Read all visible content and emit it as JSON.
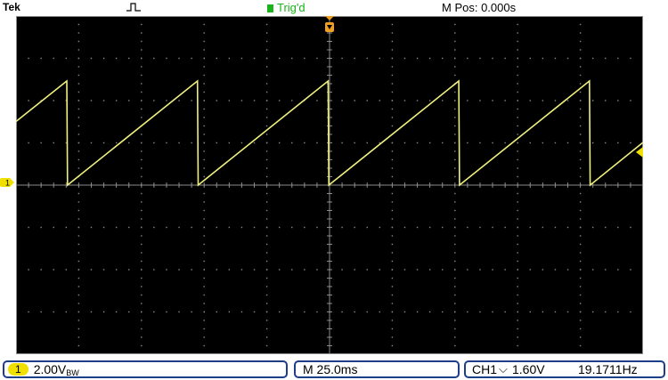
{
  "header": {
    "brand": "Tek",
    "acquisition_icon": "pulse-icon",
    "trigger_status": "Trig'd",
    "horizontal_position": "M Pos: 0.000s"
  },
  "display": {
    "background_color": "#000000",
    "grid_color": "#8a8a8a",
    "trace_color": "#f0f080",
    "divisions_horizontal": 10,
    "divisions_vertical": 8
  },
  "channel_marker": {
    "label": "1",
    "color": "#f0e000"
  },
  "status_bar": {
    "channel_badge": "1",
    "volts_per_div": "2.00V",
    "coupling_symbol": "BW",
    "timebase": "M 25.0ms",
    "trigger_source": "CH1",
    "trigger_slope_symbol": "⌵",
    "trigger_level": "1.60V",
    "frequency": "19.1711Hz"
  }
}
